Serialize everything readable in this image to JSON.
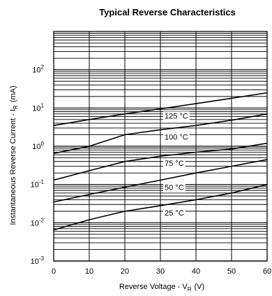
{
  "chart_data": {
    "type": "line",
    "title": "Typical Reverse Characteristics",
    "xlabel": "Reverse Voltage - V",
    "xlabel_sub": "R",
    "xlabel_unit": "(V)",
    "ylabel": "Instantaneous Reverse Current - I",
    "ylabel_sub": "R",
    "ylabel_unit": "(mA)",
    "x_scale": "linear",
    "y_scale": "log",
    "xlim": [
      0,
      60
    ],
    "ylim": [
      0.001,
      1000
    ],
    "x_ticks": [
      "0",
      "10",
      "20",
      "30",
      "40",
      "50",
      "60"
    ],
    "y_ticks": [
      {
        "base": "10",
        "exp": "-3",
        "value": 0.001
      },
      {
        "base": "10",
        "exp": "-2",
        "value": 0.01
      },
      {
        "base": "10",
        "exp": "-1",
        "value": 0.1
      },
      {
        "base": "10",
        "exp": "0",
        "value": 1
      },
      {
        "base": "10",
        "exp": "1",
        "value": 10
      },
      {
        "base": "10",
        "exp": "2",
        "value": 100
      }
    ],
    "grid": true,
    "series": [
      {
        "name": "125 °C",
        "x": [
          0,
          10,
          20,
          30,
          40,
          50,
          60
        ],
        "y": [
          3.5,
          5.0,
          7.0,
          9.5,
          13,
          18,
          25
        ]
      },
      {
        "name": "100 °C",
        "x": [
          0,
          10,
          20,
          30,
          40,
          50,
          60
        ],
        "y": [
          0.65,
          1.0,
          2.0,
          2.7,
          3.5,
          4.8,
          7.0
        ]
      },
      {
        "name": "75 °C",
        "x": [
          0,
          10,
          20,
          30,
          40,
          50,
          60
        ],
        "y": [
          0.13,
          0.23,
          0.4,
          0.55,
          0.7,
          0.85,
          1.2
        ]
      },
      {
        "name": "50 °C",
        "x": [
          0,
          10,
          20,
          30,
          40,
          50,
          60
        ],
        "y": [
          0.035,
          0.055,
          0.085,
          0.13,
          0.2,
          0.3,
          0.45
        ]
      },
      {
        "name": "25 °C",
        "x": [
          0,
          10,
          20,
          30,
          40,
          50,
          60
        ],
        "y": [
          0.0065,
          0.012,
          0.02,
          0.028,
          0.04,
          0.06,
          0.1
        ]
      }
    ],
    "label_positions_x": [
      30,
      30,
      30,
      30,
      30
    ]
  }
}
